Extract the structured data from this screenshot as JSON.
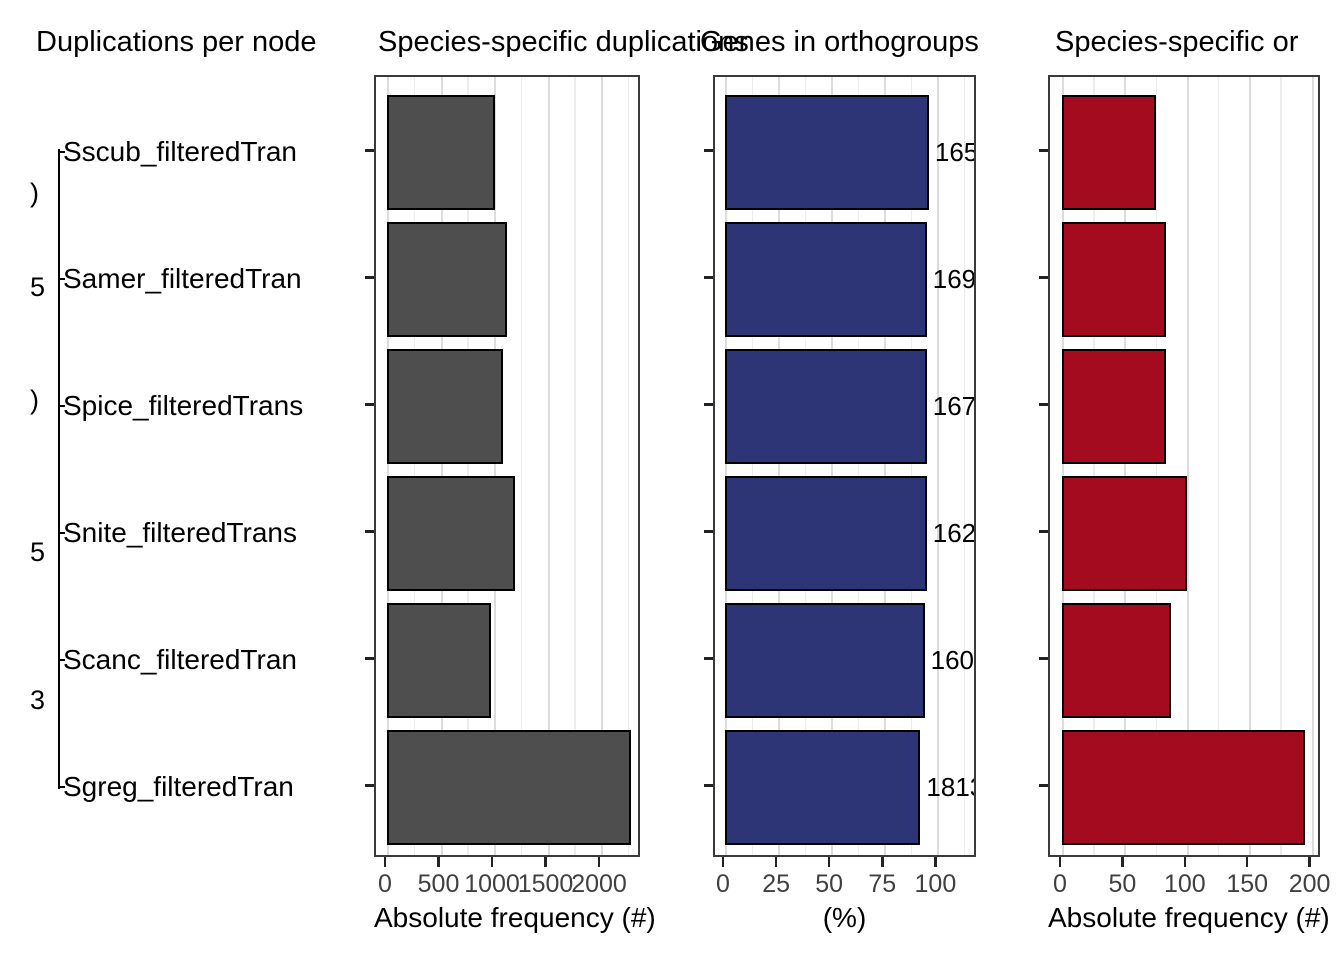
{
  "titles": [
    {
      "text": "Duplications per node"
    },
    {
      "text": "Species-specific duplications"
    },
    {
      "text": "Genes in orthogroups"
    },
    {
      "text": "Species-specific or"
    }
  ],
  "tree": {
    "species": [
      "Sscub_filteredTran",
      "Samer_filteredTran",
      "Spice_filteredTrans",
      "Snite_filteredTrans",
      "Scanc_filteredTran",
      "Sgreg_filteredTran"
    ],
    "node_label_fragments": [
      ")",
      "5",
      ")",
      "5",
      "3"
    ]
  },
  "chart_data": [
    {
      "type": "bar",
      "orientation": "horizontal",
      "title": "Species-specific duplications",
      "xlabel": "Absolute frequency (#)",
      "categories": [
        "Sscub_filteredTran",
        "Samer_filteredTran",
        "Spice_filteredTrans",
        "Snite_filteredTrans",
        "Scanc_filteredTran",
        "Sgreg_filteredTran"
      ],
      "values": [
        1010,
        1120,
        1085,
        1195,
        970,
        2280
      ],
      "x_ticks": [
        0,
        500,
        1000,
        1500,
        2000
      ],
      "x_minor_step": 250,
      "xlim": [
        0,
        2380
      ],
      "grid": true,
      "legend": false,
      "bar_color": "#4E4E4E"
    },
    {
      "type": "bar",
      "orientation": "horizontal",
      "title": "Genes in orthogroups",
      "xlabel": "(%)",
      "categories": [
        "Sscub_filteredTran",
        "Samer_filteredTran",
        "Spice_filteredTrans",
        "Snite_filteredTrans",
        "Scanc_filteredTran",
        "Sgreg_filteredTran"
      ],
      "values": [
        96,
        95,
        95,
        95,
        94,
        92
      ],
      "bar_labels": [
        "165",
        "169",
        "167",
        "162",
        "160",
        "1813"
      ],
      "x_ticks": [
        0,
        25,
        50,
        75,
        100
      ],
      "x_minor_step": 12.5,
      "xlim": [
        0,
        119
      ],
      "grid": true,
      "legend": false,
      "bar_color": "#2E3577"
    },
    {
      "type": "bar",
      "orientation": "horizontal",
      "title": "Species-specific or",
      "xlabel": "Absolute frequency (#)",
      "categories": [
        "Sscub_filteredTran",
        "Samer_filteredTran",
        "Spice_filteredTrans",
        "Snite_filteredTrans",
        "Scanc_filteredTran",
        "Sgreg_filteredTran"
      ],
      "values": [
        75,
        83,
        83,
        100,
        87,
        195
      ],
      "x_ticks": [
        0,
        50,
        100,
        150,
        200
      ],
      "x_minor_step": 25,
      "xlim": [
        0,
        216
      ],
      "grid": true,
      "legend": false,
      "bar_color": "#A50B1E"
    }
  ]
}
